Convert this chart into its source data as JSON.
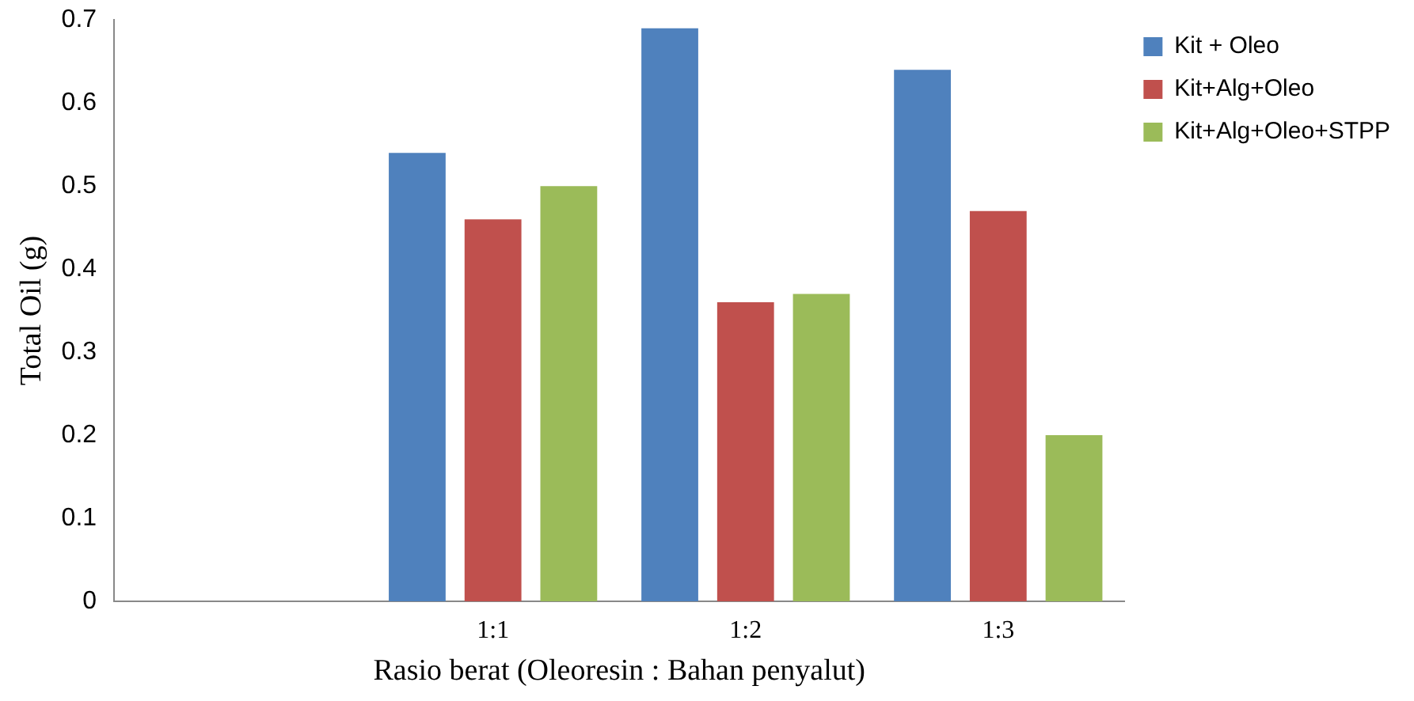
{
  "chart_data": {
    "type": "bar",
    "xlabel": "Rasio berat (Oleoresin : Bahan penyalut)",
    "ylabel": "Total Oil (g)",
    "categories": [
      null,
      "1:1",
      "1:2",
      "1:3"
    ],
    "series": [
      {
        "name": "Kit + Oleo",
        "color": "#4f81bd",
        "values": [
          null,
          0.54,
          0.69,
          0.64
        ]
      },
      {
        "name": "Kit+Alg+Oleo",
        "color": "#c0504d",
        "values": [
          null,
          0.46,
          0.36,
          0.47
        ]
      },
      {
        "name": "Kit+Alg+Oleo+STPP",
        "color": "#9bbb59",
        "values": [
          null,
          0.5,
          0.37,
          0.2
        ]
      }
    ],
    "ylim": [
      0,
      0.7
    ],
    "yticks": [
      0,
      0.1,
      0.2,
      0.3,
      0.4,
      0.5,
      0.6,
      0.7
    ],
    "grid": false,
    "legend": "top right"
  }
}
